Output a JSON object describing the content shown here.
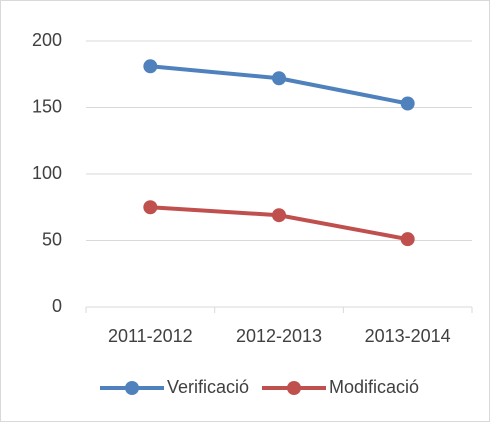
{
  "chart_data": {
    "type": "line",
    "categories": [
      "2011-2012",
      "2012-2013",
      "2013-2014"
    ],
    "series": [
      {
        "name": "Verificació",
        "color": "#4f81bd",
        "values": [
          181,
          172,
          153
        ]
      },
      {
        "name": "Modificació",
        "color": "#c0504d",
        "values": [
          75,
          69,
          51
        ]
      }
    ],
    "ylim": [
      0,
      200
    ],
    "yticks": [
      0,
      50,
      100,
      150,
      200
    ],
    "grid": true,
    "legend": "bottom"
  }
}
